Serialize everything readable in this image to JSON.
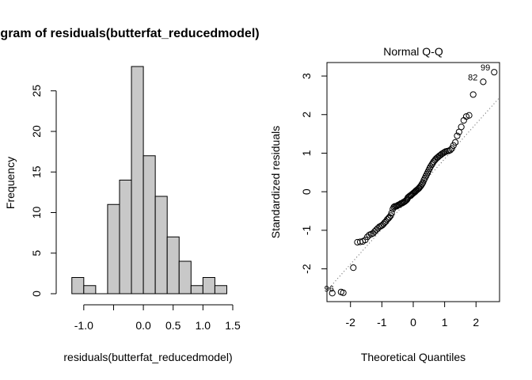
{
  "chart_data": [
    {
      "type": "bar",
      "title": "Histogram of residuals(butterfat_reducedmodel)",
      "xlabel": "residuals(butterfat_reducedmodel)",
      "ylabel": "Frequency",
      "bin_edges": [
        -1.2,
        -1.0,
        -0.8,
        -0.6,
        -0.4,
        -0.2,
        0.0,
        0.2,
        0.4,
        0.6,
        0.8,
        1.0,
        1.2,
        1.4
      ],
      "values": [
        2,
        1,
        0,
        11,
        14,
        28,
        17,
        12,
        7,
        4,
        1,
        2,
        1
      ],
      "xticks": [
        -1.0,
        -0.5,
        0.0,
        0.5,
        1.0,
        1.5
      ],
      "xtick_labels": [
        "-1.0",
        "",
        "0.0",
        "0.5",
        "1.0",
        "1.5"
      ],
      "yticks": [
        0,
        5,
        10,
        15,
        20,
        25
      ],
      "ytick_labels": [
        "0",
        "5",
        "10",
        "15",
        "20",
        "25"
      ],
      "xlim": [
        -1.25,
        1.5
      ],
      "ylim": [
        0,
        28
      ],
      "bar_color": "#c8c8c8"
    },
    {
      "type": "scatter",
      "title": "Normal Q-Q",
      "xlabel": "Theoretical Quantiles",
      "ylabel": "Standardized residuals",
      "xticks": [
        -2,
        -1,
        0,
        1,
        2
      ],
      "xtick_labels": [
        "-2",
        "-1",
        "0",
        "1",
        "2"
      ],
      "yticks": [
        -2,
        -1,
        0,
        1,
        2,
        3
      ],
      "ytick_labels": [
        "-2",
        "-1",
        "0",
        "1",
        "2",
        "3"
      ],
      "xlim": [
        -2.75,
        2.75
      ],
      "ylim": [
        -2.85,
        3.35
      ],
      "reference_line": {
        "intercept": -0.06,
        "slope": 0.91
      },
      "annotations": [
        {
          "label": "99",
          "x": 2.58,
          "y": 3.1
        },
        {
          "label": "82",
          "x": 2.18,
          "y": 2.85
        },
        {
          "label": "96",
          "x": -2.4,
          "y": -2.63
        }
      ],
      "points": [
        [
          -2.58,
          -2.63
        ],
        [
          -2.3,
          -2.6
        ],
        [
          -2.23,
          -2.62
        ],
        [
          -1.91,
          -1.97
        ],
        [
          -1.78,
          -1.31
        ],
        [
          -1.69,
          -1.3
        ],
        [
          -1.61,
          -1.29
        ],
        [
          -1.53,
          -1.25
        ],
        [
          -1.46,
          -1.17
        ],
        [
          -1.4,
          -1.12
        ],
        [
          -1.34,
          -1.1
        ],
        [
          -1.28,
          -1.08
        ],
        [
          -1.23,
          -1.03
        ],
        [
          -1.18,
          -0.99
        ],
        [
          -1.13,
          -0.95
        ],
        [
          -1.08,
          -0.91
        ],
        [
          -1.03,
          -0.89
        ],
        [
          -0.99,
          -0.87
        ],
        [
          -0.95,
          -0.84
        ],
        [
          -0.91,
          -0.8
        ],
        [
          -0.87,
          -0.77
        ],
        [
          -0.83,
          -0.72
        ],
        [
          -0.79,
          -0.69
        ],
        [
          -0.76,
          -0.66
        ],
        [
          -0.72,
          -0.62
        ],
        [
          -0.69,
          -0.55
        ],
        [
          -0.65,
          -0.45
        ],
        [
          -0.62,
          -0.4
        ],
        [
          -0.59,
          -0.38
        ],
        [
          -0.55,
          -0.38
        ],
        [
          -0.52,
          -0.37
        ],
        [
          -0.49,
          -0.35
        ],
        [
          -0.46,
          -0.34
        ],
        [
          -0.43,
          -0.33
        ],
        [
          -0.4,
          -0.31
        ],
        [
          -0.37,
          -0.3
        ],
        [
          -0.34,
          -0.29
        ],
        [
          -0.31,
          -0.27
        ],
        [
          -0.28,
          -0.26
        ],
        [
          -0.25,
          -0.24
        ],
        [
          -0.22,
          -0.22
        ],
        [
          -0.19,
          -0.19
        ],
        [
          -0.17,
          -0.15
        ],
        [
          -0.14,
          -0.13
        ],
        [
          -0.11,
          -0.11
        ],
        [
          -0.08,
          -0.1
        ],
        [
          -0.06,
          -0.08
        ],
        [
          -0.03,
          -0.06
        ],
        [
          0.0,
          -0.04
        ],
        [
          0.03,
          -0.02
        ],
        [
          0.06,
          0.0
        ],
        [
          0.08,
          0.02
        ],
        [
          0.11,
          0.04
        ],
        [
          0.14,
          0.06
        ],
        [
          0.17,
          0.08
        ],
        [
          0.19,
          0.1
        ],
        [
          0.22,
          0.13
        ],
        [
          0.25,
          0.16
        ],
        [
          0.28,
          0.2
        ],
        [
          0.31,
          0.24
        ],
        [
          0.34,
          0.3
        ],
        [
          0.37,
          0.35
        ],
        [
          0.4,
          0.4
        ],
        [
          0.43,
          0.45
        ],
        [
          0.46,
          0.5
        ],
        [
          0.49,
          0.55
        ],
        [
          0.52,
          0.6
        ],
        [
          0.55,
          0.65
        ],
        [
          0.59,
          0.7
        ],
        [
          0.62,
          0.74
        ],
        [
          0.65,
          0.78
        ],
        [
          0.69,
          0.82
        ],
        [
          0.72,
          0.85
        ],
        [
          0.76,
          0.88
        ],
        [
          0.79,
          0.9
        ],
        [
          0.83,
          0.93
        ],
        [
          0.87,
          0.95
        ],
        [
          0.91,
          0.98
        ],
        [
          0.95,
          1.0
        ],
        [
          0.99,
          1.02
        ],
        [
          1.03,
          1.04
        ],
        [
          1.08,
          1.05
        ],
        [
          1.13,
          1.06
        ],
        [
          1.18,
          1.08
        ],
        [
          1.23,
          1.12
        ],
        [
          1.28,
          1.2
        ],
        [
          1.34,
          1.28
        ],
        [
          1.4,
          1.45
        ],
        [
          1.46,
          1.55
        ],
        [
          1.53,
          1.68
        ],
        [
          1.61,
          1.85
        ],
        [
          1.69,
          1.95
        ],
        [
          1.78,
          1.98
        ],
        [
          1.91,
          2.52
        ],
        [
          2.23,
          2.85
        ],
        [
          2.58,
          3.1
        ]
      ]
    }
  ]
}
